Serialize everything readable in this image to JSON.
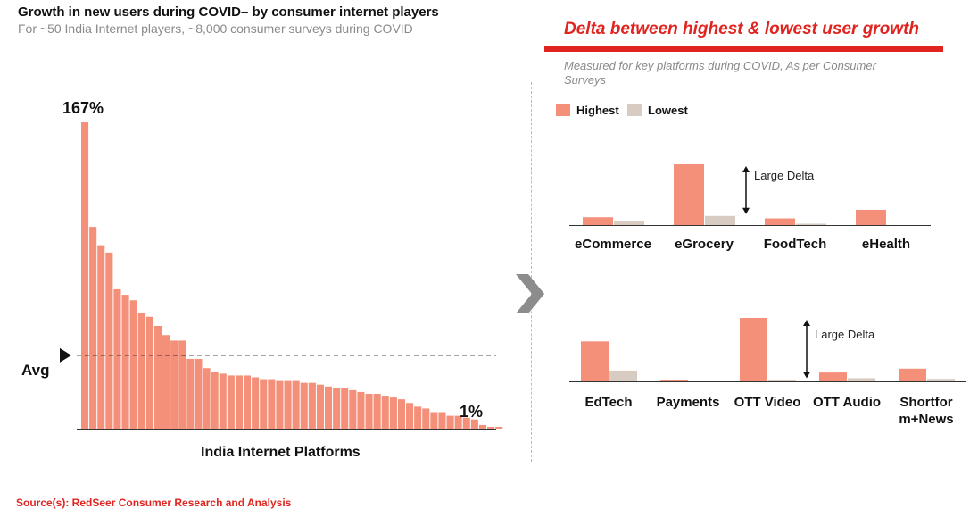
{
  "title": "Growth in new users  during COVID– by consumer internet players",
  "subtitle": "For ~50 India Internet players, ~8,000 consumer surveys during COVID",
  "left_chart": {
    "max_label": "167%",
    "min_label": "1%",
    "avg_label": "Avg",
    "xlabel": "India Internet  Platforms"
  },
  "right_panel": {
    "title": "Delta between highest & lowest user growth",
    "subtitle": "Measured for key platforms during COVID, As per Consumer Surveys",
    "legend": {
      "highest": "Highest",
      "lowest": "Lowest"
    },
    "delta_label": "Large Delta"
  },
  "source": "Source(s): RedSeer Consumer Research and Analysis",
  "colors": {
    "bar": "#f4907a",
    "lowest": "#d7cbc2",
    "accent": "#e0241f",
    "chevron": "#8c8c8c"
  },
  "icons": {
    "avg_marker": "triangle-right-icon",
    "divider": "chevron-right-icon",
    "delta": "double-arrow-icon"
  },
  "chart_data": [
    {
      "type": "bar",
      "title": "Growth in new users  during COVID– by consumer internet players",
      "xlabel": "India Internet  Platforms",
      "ylabel": "",
      "unit": "%",
      "values": [
        167,
        110,
        100,
        96,
        76,
        73,
        70,
        63,
        61,
        56,
        51,
        48,
        48,
        38,
        38,
        33,
        31,
        30,
        29,
        29,
        29,
        28,
        27,
        27,
        26,
        26,
        26,
        25,
        25,
        24,
        23,
        22,
        22,
        21,
        20,
        19,
        19,
        18,
        17,
        16,
        14,
        12,
        11,
        9,
        9,
        7,
        7,
        6,
        5,
        2,
        1,
        1
      ],
      "average": 40,
      "ylim": [
        0,
        167
      ]
    },
    {
      "type": "bar",
      "title": "Delta between highest & lowest user growth",
      "series_names": [
        "Highest",
        "Lowest"
      ],
      "groups": [
        {
          "categories": [
            "eCommerce",
            "eGrocery",
            "FoodTech",
            "eHealth"
          ],
          "series": [
            {
              "name": "Highest",
              "values": [
                13,
                100,
                11,
                25
              ]
            },
            {
              "name": "Lowest",
              "values": [
                7,
                15,
                1,
                0
              ]
            }
          ],
          "annotation": {
            "category": "eGrocery",
            "text": "Large Delta"
          }
        },
        {
          "categories": [
            "EdTech",
            "Payments",
            "OTT Video",
            "OTT Audio",
            "Shortform+News"
          ],
          "series": [
            {
              "name": "Highest",
              "values": [
                63,
                2,
                100,
                14,
                20
              ]
            },
            {
              "name": "Lowest",
              "values": [
                17,
                0,
                2,
                5,
                4
              ]
            }
          ],
          "annotation": {
            "category": "OTT Video",
            "text": "Large Delta"
          }
        }
      ]
    }
  ]
}
